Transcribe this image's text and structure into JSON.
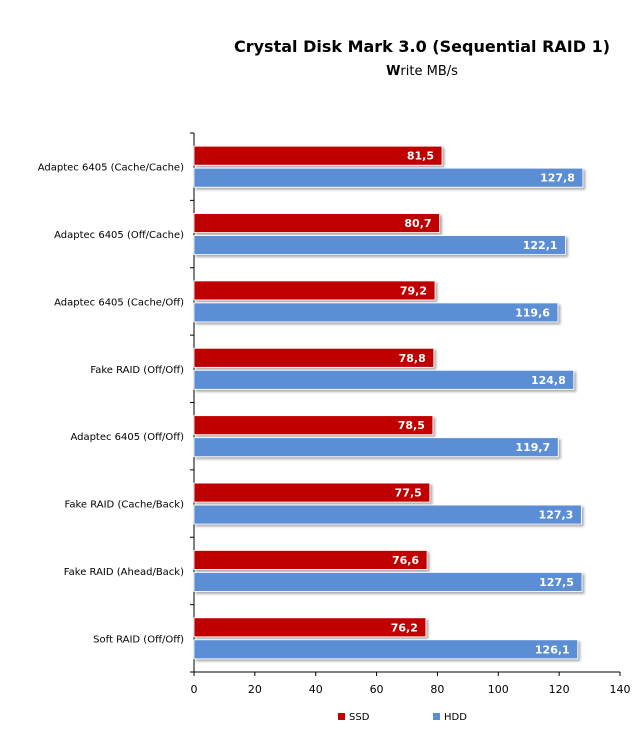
{
  "chart_data": {
    "type": "bar",
    "orientation": "horizontal",
    "title": "Crystal Disk Mark 3.0 (Sequential RAID 1)",
    "subtitle_bold": "W",
    "subtitle_rest": "rite MB/s",
    "categories": [
      "Adaptec 6405 (Cache/Cache)",
      "Adaptec 6405 (Off/Cache)",
      "Adaptec 6405 (Cache/Off)",
      "Fake RAID (Off/Off)",
      "Adaptec 6405 (Off/Off)",
      "Fake RAID (Cache/Back)",
      "Fake RAID (Ahead/Back)",
      "Soft RAID (Off/Off)"
    ],
    "series": [
      {
        "name": "SSD",
        "color": "#c00000",
        "values": [
          81.5,
          80.7,
          79.2,
          78.8,
          78.5,
          77.5,
          76.6,
          76.2
        ],
        "labels": [
          "81,5",
          "80,7",
          "79,2",
          "78,8",
          "78,5",
          "77,5",
          "76,6",
          "76,2"
        ]
      },
      {
        "name": "HDD",
        "color": "#5b8ed6",
        "values": [
          127.8,
          122.1,
          119.6,
          124.8,
          119.7,
          127.3,
          127.5,
          126.1
        ],
        "labels": [
          "127,8",
          "122,1",
          "119,6",
          "124,8",
          "119,7",
          "127,3",
          "127,5",
          "126,1"
        ]
      }
    ],
    "xlim": [
      0,
      140
    ],
    "xticks": [
      "0",
      "20",
      "40",
      "60",
      "80",
      "100",
      "120",
      "140"
    ],
    "grid": false,
    "legend_position": "bottom"
  }
}
